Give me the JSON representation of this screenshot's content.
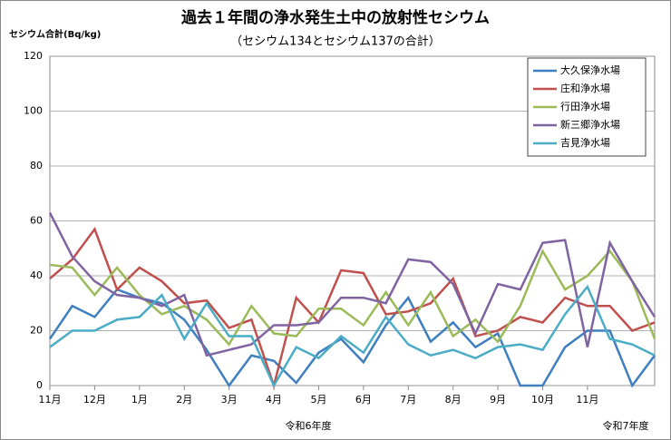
{
  "chart_data": {
    "type": "line",
    "title": "過去１年間の浄水発生土中の放射性セシウム",
    "subtitle": "（セシウム134とセシウム137の合計）",
    "y_label": "セシウム合計(Bq/kg)",
    "annotations": [
      "令和6年度",
      "令和7年度"
    ],
    "categories": [
      "11月",
      null,
      "12月",
      null,
      "1月",
      null,
      "2月",
      null,
      "3月",
      null,
      "4月",
      null,
      "5月",
      null,
      "6月",
      null,
      "7月",
      null,
      "8月",
      null,
      "9月",
      null,
      "10月",
      null,
      "11月",
      null,
      null,
      null
    ],
    "ylim": [
      0,
      120
    ],
    "yticks": [
      0,
      20,
      40,
      60,
      80,
      100,
      120
    ],
    "grid": true,
    "legend": "upper right",
    "series": [
      {
        "name": "大久保浄水場",
        "color": "#3f7fc0",
        "values": [
          17,
          29,
          25,
          35,
          32,
          30,
          24,
          13,
          0,
          11,
          9,
          1,
          12,
          17,
          8.5,
          22,
          32,
          16,
          23,
          14,
          19,
          0,
          0,
          14,
          20,
          20,
          0,
          11
        ]
      },
      {
        "name": "庄和浄水場",
        "color": "#c0504d",
        "values": [
          39,
          46,
          57,
          35,
          43,
          38,
          30,
          31,
          21,
          24,
          0,
          32,
          23,
          42,
          41,
          26,
          27,
          30,
          39,
          18,
          20,
          25,
          23,
          32,
          29,
          29,
          20,
          23
        ]
      },
      {
        "name": "行田浄水場",
        "color": "#9bbb59",
        "values": [
          44,
          43,
          33,
          43,
          33,
          26,
          29,
          24,
          15,
          29,
          19,
          18,
          28,
          28,
          22,
          34,
          22,
          34,
          18,
          24,
          16,
          29,
          49,
          35,
          40,
          49,
          38,
          17
        ]
      },
      {
        "name": "新三郷浄水場",
        "color": "#8064a2",
        "values": [
          63,
          47,
          38,
          33,
          32,
          29,
          33,
          11,
          13,
          15,
          22,
          22,
          23,
          32,
          32,
          30,
          46,
          45,
          37,
          19,
          37,
          35,
          52,
          53,
          14,
          52,
          38,
          25
        ]
      },
      {
        "name": "吉見浄水場",
        "color": "#4bacc6",
        "values": [
          14,
          20,
          20,
          24,
          25,
          33,
          17,
          30,
          18,
          18,
          0,
          14,
          10,
          18,
          12,
          25,
          15,
          11,
          13,
          10,
          14,
          15,
          13,
          26,
          36,
          17,
          15,
          11
        ]
      }
    ]
  }
}
